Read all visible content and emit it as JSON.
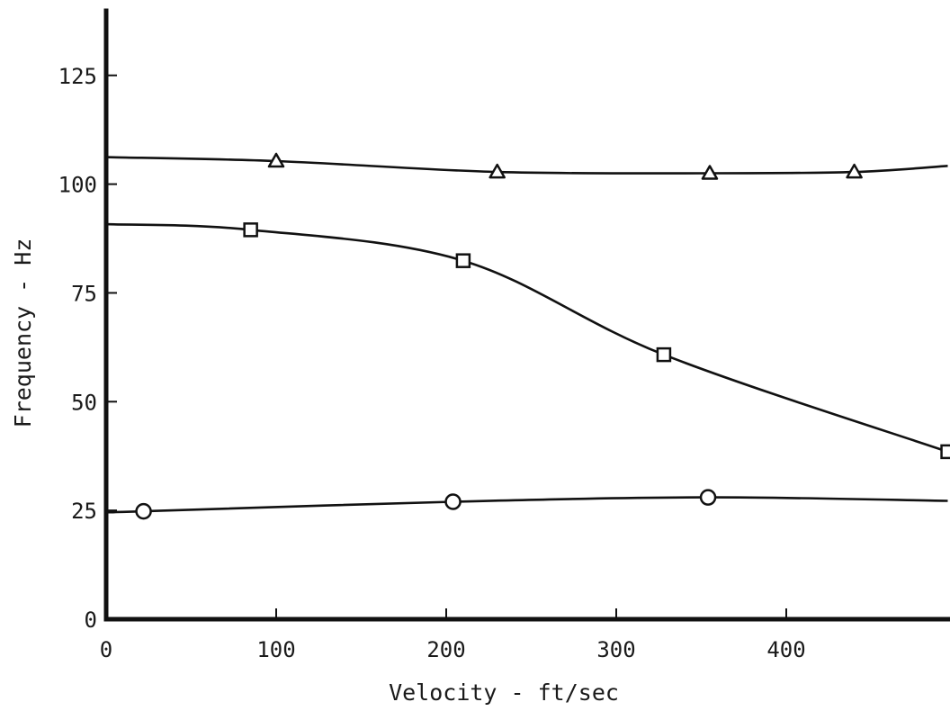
{
  "chart_data": {
    "type": "line",
    "xlabel": "Velocity - ft/sec",
    "ylabel": "Frequency - Hz",
    "xlim": [
      0,
      495
    ],
    "ylim": [
      0,
      140
    ],
    "xticks": [
      0,
      100,
      200,
      300,
      400
    ],
    "yticks": [
      0,
      25,
      50,
      75,
      100,
      125
    ],
    "x_tick_labels": [
      "0",
      "100",
      "200",
      "300",
      "400"
    ],
    "y_tick_labels": [
      "0",
      "25",
      "50",
      "75",
      "100",
      "125"
    ],
    "grid": false,
    "series": [
      {
        "marker": "triangle",
        "points": [
          [
            100,
            105.3
          ],
          [
            230,
            102.8
          ],
          [
            355,
            102.5
          ],
          [
            440,
            102.8
          ]
        ],
        "curve_start": [
          0,
          106.2
        ],
        "curve_end": [
          495,
          104.2
        ]
      },
      {
        "marker": "square",
        "points": [
          [
            85,
            89.5
          ],
          [
            210,
            82.4
          ],
          [
            328,
            60.8
          ],
          [
            495,
            38.5
          ]
        ],
        "curve_start": [
          0,
          90.8
        ],
        "curve_end": [
          495,
          38.5
        ]
      },
      {
        "marker": "circle",
        "points": [
          [
            22,
            24.8
          ],
          [
            204,
            27.0
          ],
          [
            354,
            28.0
          ]
        ],
        "curve_start": [
          0,
          24.6
        ],
        "curve_end": [
          495,
          27.2
        ]
      }
    ]
  }
}
